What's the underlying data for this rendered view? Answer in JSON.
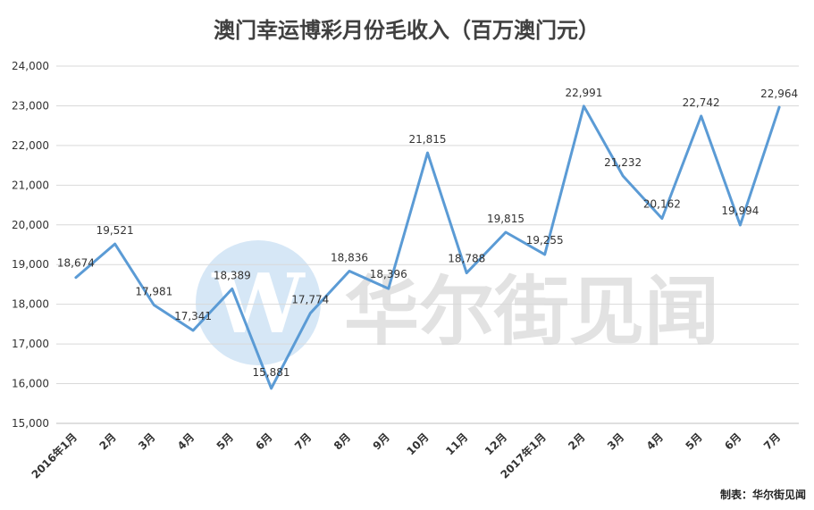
{
  "colors": {
    "line": "#5b9bd5",
    "grid": "#d9d9d9",
    "watermark_circle": "#cfe3f5"
  },
  "watermark": {
    "text": "华尔街见闻",
    "logo_letter": "W",
    "icon": "wallstreetcn-logo-icon"
  },
  "footer": "制表：华尔街见闻",
  "chart_data": {
    "type": "line",
    "title": "澳门幸运博彩月份毛收入（百万澳门元）",
    "xlabel": "",
    "ylabel": "",
    "ylim": [
      15000,
      24000
    ],
    "yticks": [
      15000,
      16000,
      17000,
      18000,
      19000,
      20000,
      21000,
      22000,
      23000,
      24000
    ],
    "ytick_labels": [
      "15,000",
      "16,000",
      "17,000",
      "18,000",
      "19,000",
      "20,000",
      "21,000",
      "22,000",
      "23,000",
      "24,000"
    ],
    "grid": true,
    "legend": "none",
    "categories": [
      "2016年1月",
      "2月",
      "3月",
      "4月",
      "5月",
      "6月",
      "7月",
      "8月",
      "9月",
      "10月",
      "11月",
      "12月",
      "2017年1月",
      "2月",
      "3月",
      "4月",
      "5月",
      "6月",
      "7月"
    ],
    "series": [
      {
        "values": [
          18674,
          19521,
          17981,
          17341,
          18389,
          15881,
          17774,
          18836,
          18396,
          21815,
          18788,
          19815,
          19255,
          22991,
          21232,
          20162,
          22742,
          19994,
          22964
        ],
        "labels": [
          "18,674",
          "19,521",
          "17,981",
          "17,341",
          "18,389",
          "15,881",
          "17,774",
          "18,836",
          "18,396",
          "21,815",
          "18,788",
          "19,815",
          "19,255",
          "22,991",
          "21,232",
          "20,162",
          "22,742",
          "19,994",
          "22,964"
        ]
      }
    ]
  }
}
